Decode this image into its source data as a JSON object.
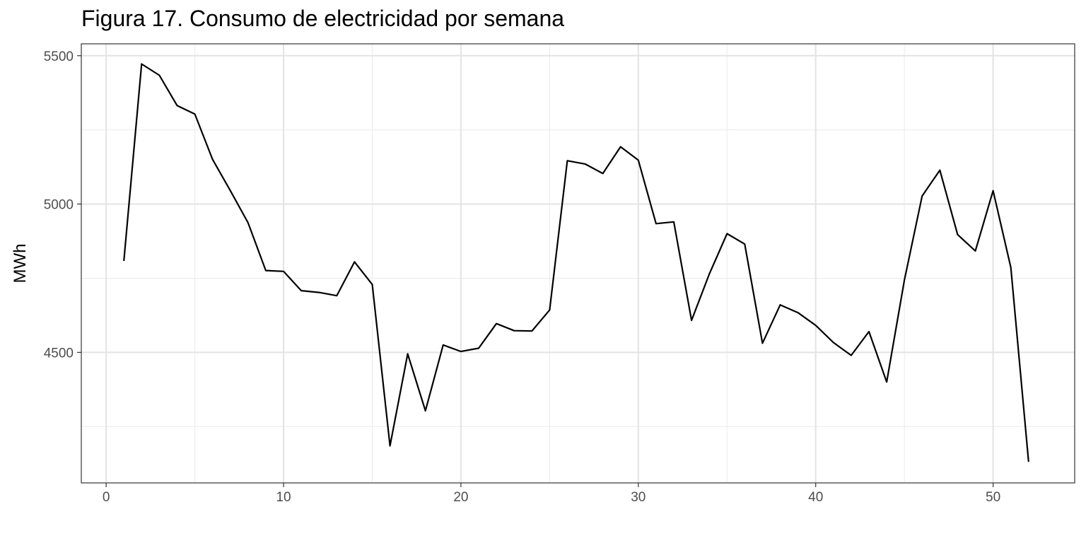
{
  "chart_data": {
    "type": "line",
    "title": "Figura 17. Consumo de electricidad por semana",
    "xlabel": "",
    "ylabel": "MWh",
    "xlim": [
      -1.4,
      54.6
    ],
    "ylim": [
      4060,
      5540
    ],
    "x_ticks": [
      0,
      10,
      20,
      30,
      40,
      50
    ],
    "x_tick_labels": [
      "0",
      "10",
      "20",
      "30",
      "40",
      "50"
    ],
    "y_ticks": [
      4500,
      5000,
      5500
    ],
    "y_tick_labels": [
      "4500",
      "5000",
      "5500"
    ],
    "y_minor_ticks": [
      4250,
      4750,
      5250
    ],
    "grid": true,
    "series": [
      {
        "color": "#000000",
        "x": [
          1,
          2,
          3,
          4,
          5,
          6,
          7,
          8,
          9,
          10,
          11,
          12,
          13,
          14,
          15,
          16,
          17,
          18,
          19,
          20,
          21,
          22,
          23,
          24,
          25,
          26,
          27,
          28,
          29,
          30,
          31,
          32,
          33,
          34,
          35,
          36,
          37,
          38,
          39,
          40,
          41,
          42,
          43,
          44,
          45,
          46,
          47,
          48,
          49,
          50,
          51,
          52
        ],
        "values": [
          4808,
          5472,
          5434,
          5332,
          5303,
          5150,
          5045,
          4937,
          4776,
          4773,
          4708,
          4702,
          4691,
          4805,
          4729,
          4185,
          4495,
          4303,
          4525,
          4503,
          4514,
          4597,
          4573,
          4572,
          4643,
          5146,
          5135,
          5103,
          5193,
          5148,
          4934,
          4940,
          4608,
          4764,
          4900,
          4865,
          4531,
          4660,
          4634,
          4591,
          4533,
          4490,
          4570,
          4400,
          4743,
          5027,
          5114,
          4897,
          4842,
          5045,
          4786,
          4131
        ]
      }
    ]
  }
}
